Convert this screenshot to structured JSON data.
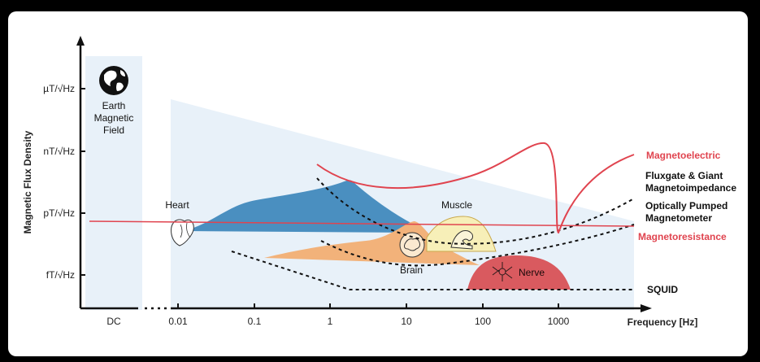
{
  "chart_data": {
    "type": "area",
    "title": "",
    "xlabel": "Frequency [Hz]",
    "ylabel": "Magnetic Flux Density",
    "x_ticks": [
      "DC",
      "0.01",
      "0.1",
      "1",
      "10",
      "100",
      "1000"
    ],
    "y_ticks": [
      "µT/√Hz",
      "nT/√Hz",
      "pT/√Hz",
      "fT/√Hz"
    ],
    "earth_field_label": [
      "Earth",
      "Magnetic",
      "Field"
    ],
    "signal_sources": [
      {
        "name": "Heart"
      },
      {
        "name": "Muscle"
      },
      {
        "name": "Brain"
      },
      {
        "name": "Nerve"
      }
    ],
    "sensor_curves": [
      {
        "name": "Magnetoelectric",
        "color": "#e0444f",
        "style": "solid"
      },
      {
        "name": "Fluxgate & Giant Magnetoimpedance",
        "color": "#111111",
        "style": "dashed"
      },
      {
        "name": "Optically Pumped Magnetometer",
        "color": "#111111",
        "style": "dashed"
      },
      {
        "name": "Magnetoresistance",
        "color": "#e0444f",
        "style": "solid"
      },
      {
        "name": "SQUID",
        "color": "#111111",
        "style": "dashed"
      }
    ],
    "colors": {
      "heart": "#4a8fc0",
      "brain": "#f2b27a",
      "muscle": "#f7efb8",
      "nerve": "#d95a5f",
      "background_band": "#e8f1f9"
    }
  }
}
